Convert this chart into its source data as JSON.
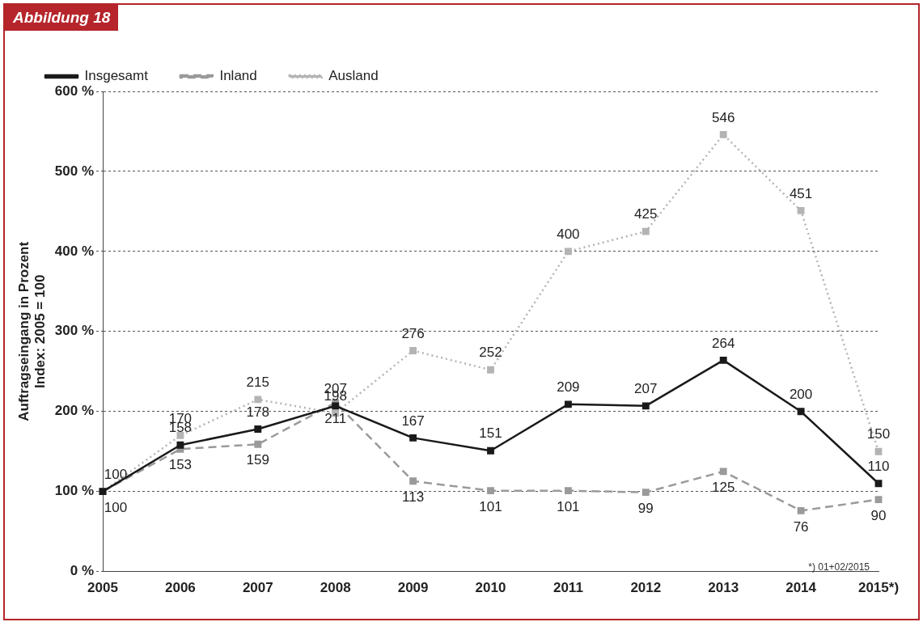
{
  "chart_data": {
    "type": "line",
    "title": "Abbildung 18",
    "ylabel": "Auftragseingang in Prozent\nIndex: 2005 = 100",
    "categories": [
      "2005",
      "2006",
      "2007",
      "2008",
      "2009",
      "2010",
      "2011",
      "2012",
      "2013",
      "2014",
      "2015*)"
    ],
    "series": [
      {
        "name": "Insgesamt",
        "color": "#1a1a1a",
        "line_style": "solid",
        "values": [
          100,
          158,
          178,
          207,
          167,
          151,
          209,
          207,
          264,
          200,
          110
        ],
        "value_labels": [
          null,
          "158",
          "178",
          "207",
          "167",
          "151",
          "209",
          "207",
          "264",
          "200",
          "110"
        ]
      },
      {
        "name": "Inland",
        "color": "#9a9a9a",
        "line_style": "dashed",
        "values": [
          100,
          153,
          159,
          211,
          113,
          101,
          101,
          99,
          125,
          76,
          90
        ],
        "value_labels": [
          "100",
          "153",
          "159",
          "211",
          "113",
          "101",
          "101",
          "99",
          "125",
          "76",
          "90"
        ]
      },
      {
        "name": "Ausland",
        "color": "#b4b4b4",
        "line_style": "dotted",
        "values": [
          100,
          170,
          215,
          198,
          276,
          252,
          400,
          425,
          546,
          451,
          150
        ],
        "value_labels": [
          "100",
          "170",
          "215",
          "198",
          "276",
          "252",
          "400",
          "425",
          "546",
          "451",
          "150"
        ]
      }
    ],
    "ylim": [
      0,
      600
    ],
    "yticks": [
      {
        "value": 0,
        "label": "0 %"
      },
      {
        "value": 100,
        "label": "100 %"
      },
      {
        "value": 200,
        "label": "200 %"
      },
      {
        "value": 300,
        "label": "300 %"
      },
      {
        "value": 400,
        "label": "400 %"
      },
      {
        "value": 500,
        "label": "500 %"
      },
      {
        "value": 600,
        "label": "600 %"
      }
    ],
    "grid": "y",
    "legend": "top left",
    "marker": "square",
    "annotations": [
      "*) 01+02/2015"
    ]
  }
}
